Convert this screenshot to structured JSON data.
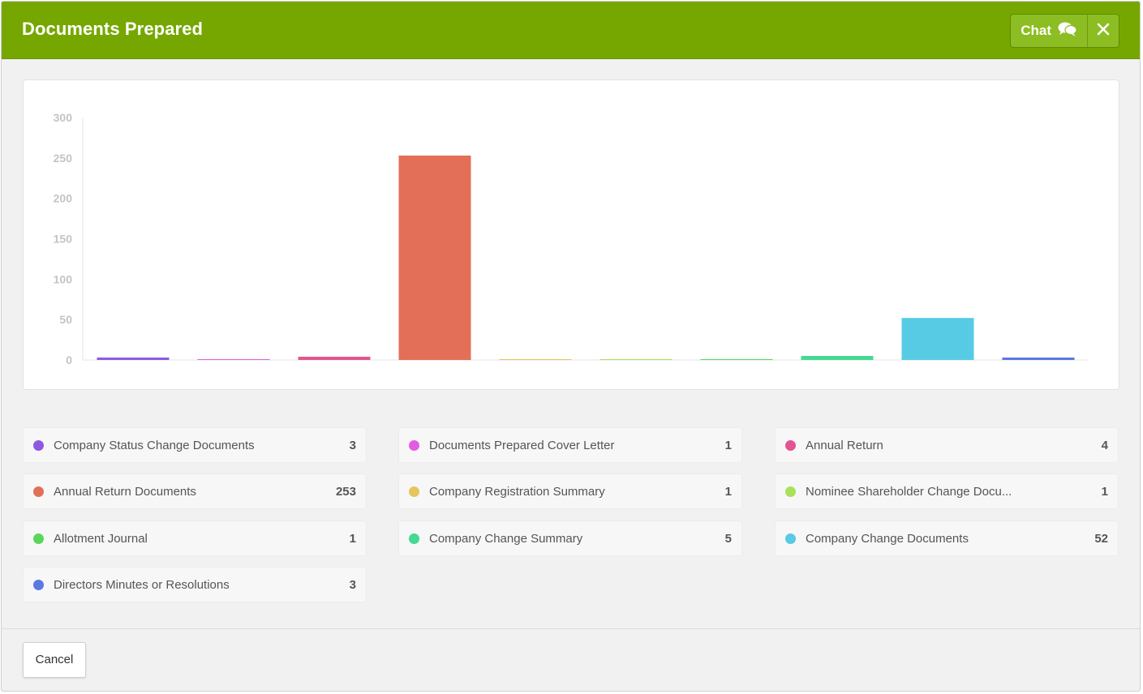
{
  "dialog": {
    "title": "Documents Prepared",
    "chat_label": "Chat",
    "chat_icon": "chat-bubbles-icon",
    "close_icon": "close-icon",
    "cancel_label": "Cancel",
    "header_color": "#76a700"
  },
  "chart_data": {
    "type": "bar",
    "categories": [
      "Company Status Change Documents",
      "Documents Prepared Cover Letter",
      "Annual Return",
      "Annual Return Documents",
      "Company Registration Summary",
      "Nominee Shareholder Change Docu...",
      "Allotment Journal",
      "Company Change Summary",
      "Company Change Documents",
      "Directors Minutes or Resolutions"
    ],
    "values": [
      3,
      1,
      4,
      253,
      1,
      1,
      1,
      5,
      52,
      3
    ],
    "colors": [
      "#8e59e2",
      "#e35ce0",
      "#e25590",
      "#e36f58",
      "#e6c65c",
      "#a9e15a",
      "#5ad65c",
      "#45d993",
      "#57cbe3",
      "#5b78e2"
    ],
    "ylim": [
      0,
      300
    ],
    "yticks": [
      0,
      50,
      100,
      150,
      200,
      250,
      300
    ],
    "grid": false,
    "xlabel": "",
    "ylabel": ""
  },
  "legend": [
    {
      "label": "Company Status Change Documents",
      "value": "3",
      "color": "#8e59e2"
    },
    {
      "label": "Documents Prepared Cover Letter",
      "value": "1",
      "color": "#e35ce0"
    },
    {
      "label": "Annual Return",
      "value": "4",
      "color": "#e25590"
    },
    {
      "label": "Annual Return Documents",
      "value": "253",
      "color": "#e36f58"
    },
    {
      "label": "Company Registration Summary",
      "value": "1",
      "color": "#e6c65c"
    },
    {
      "label": "Nominee Shareholder Change Docu...",
      "value": "1",
      "color": "#a9e15a"
    },
    {
      "label": "Allotment Journal",
      "value": "1",
      "color": "#5ad65c"
    },
    {
      "label": "Company Change Summary",
      "value": "5",
      "color": "#45d993"
    },
    {
      "label": "Company Change Documents",
      "value": "52",
      "color": "#57cbe3"
    },
    {
      "label": "Directors Minutes or Resolutions",
      "value": "3",
      "color": "#5b78e2"
    }
  ]
}
